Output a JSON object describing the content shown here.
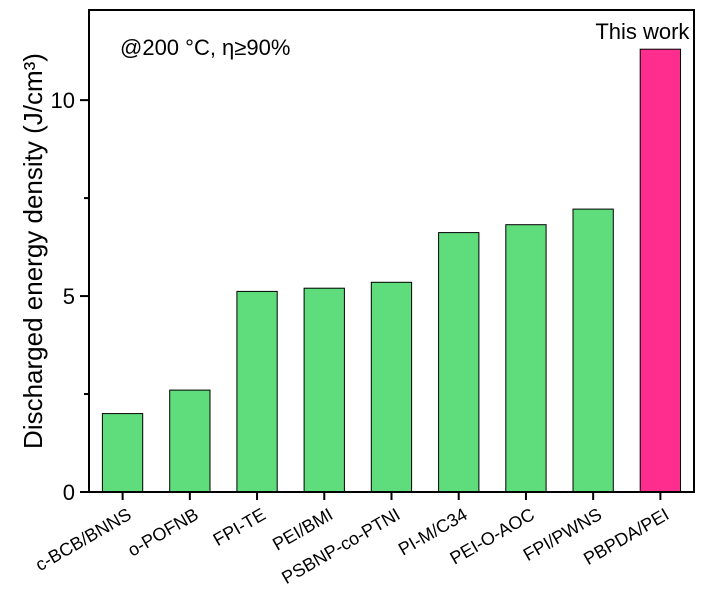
{
  "chart_data": {
    "type": "bar",
    "condition_label": "@200 °C, η≥90%",
    "ylabel": "Discharged energy density (J/cm³)",
    "xlabel": "",
    "ylim": [
      0,
      12.3
    ],
    "yticks": [
      0,
      5,
      10
    ],
    "yminor": [
      2.5,
      7.5
    ],
    "categories": [
      "c-BCB/BNNS",
      "o-POFNB",
      "FPI-TE",
      "PEI/BMI",
      "PSBNP-co-PTNI",
      "PI-M/C34",
      "PEI-O-AOC",
      "FPI/PWNS",
      "PBPDA/PEI"
    ],
    "values": [
      2.0,
      2.6,
      5.12,
      5.2,
      5.35,
      6.62,
      6.82,
      7.22,
      11.3
    ],
    "bar_colors": [
      "#5fdd7d",
      "#5fdd7d",
      "#5fdd7d",
      "#5fdd7d",
      "#5fdd7d",
      "#5fdd7d",
      "#5fdd7d",
      "#5fdd7d",
      "#ff2d8d"
    ],
    "annotation": {
      "text": "This work",
      "category_index": 8
    }
  }
}
